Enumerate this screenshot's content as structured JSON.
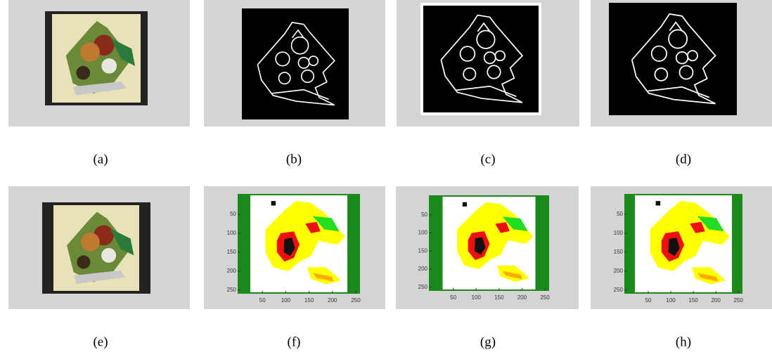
{
  "panels": [
    {
      "label": "(a)"
    },
    {
      "label": "(b)"
    },
    {
      "label": "(c)"
    },
    {
      "label": "(d)"
    },
    {
      "label": "(e)"
    },
    {
      "label": "(f)"
    },
    {
      "label": "(g)"
    },
    {
      "label": "(h)"
    }
  ],
  "axes": {
    "xlim": [
      0,
      256
    ],
    "ylim": [
      0,
      256
    ],
    "xticks": [
      50,
      100,
      150,
      200,
      250
    ],
    "yticks": [
      50,
      100,
      150,
      200,
      250
    ]
  }
}
